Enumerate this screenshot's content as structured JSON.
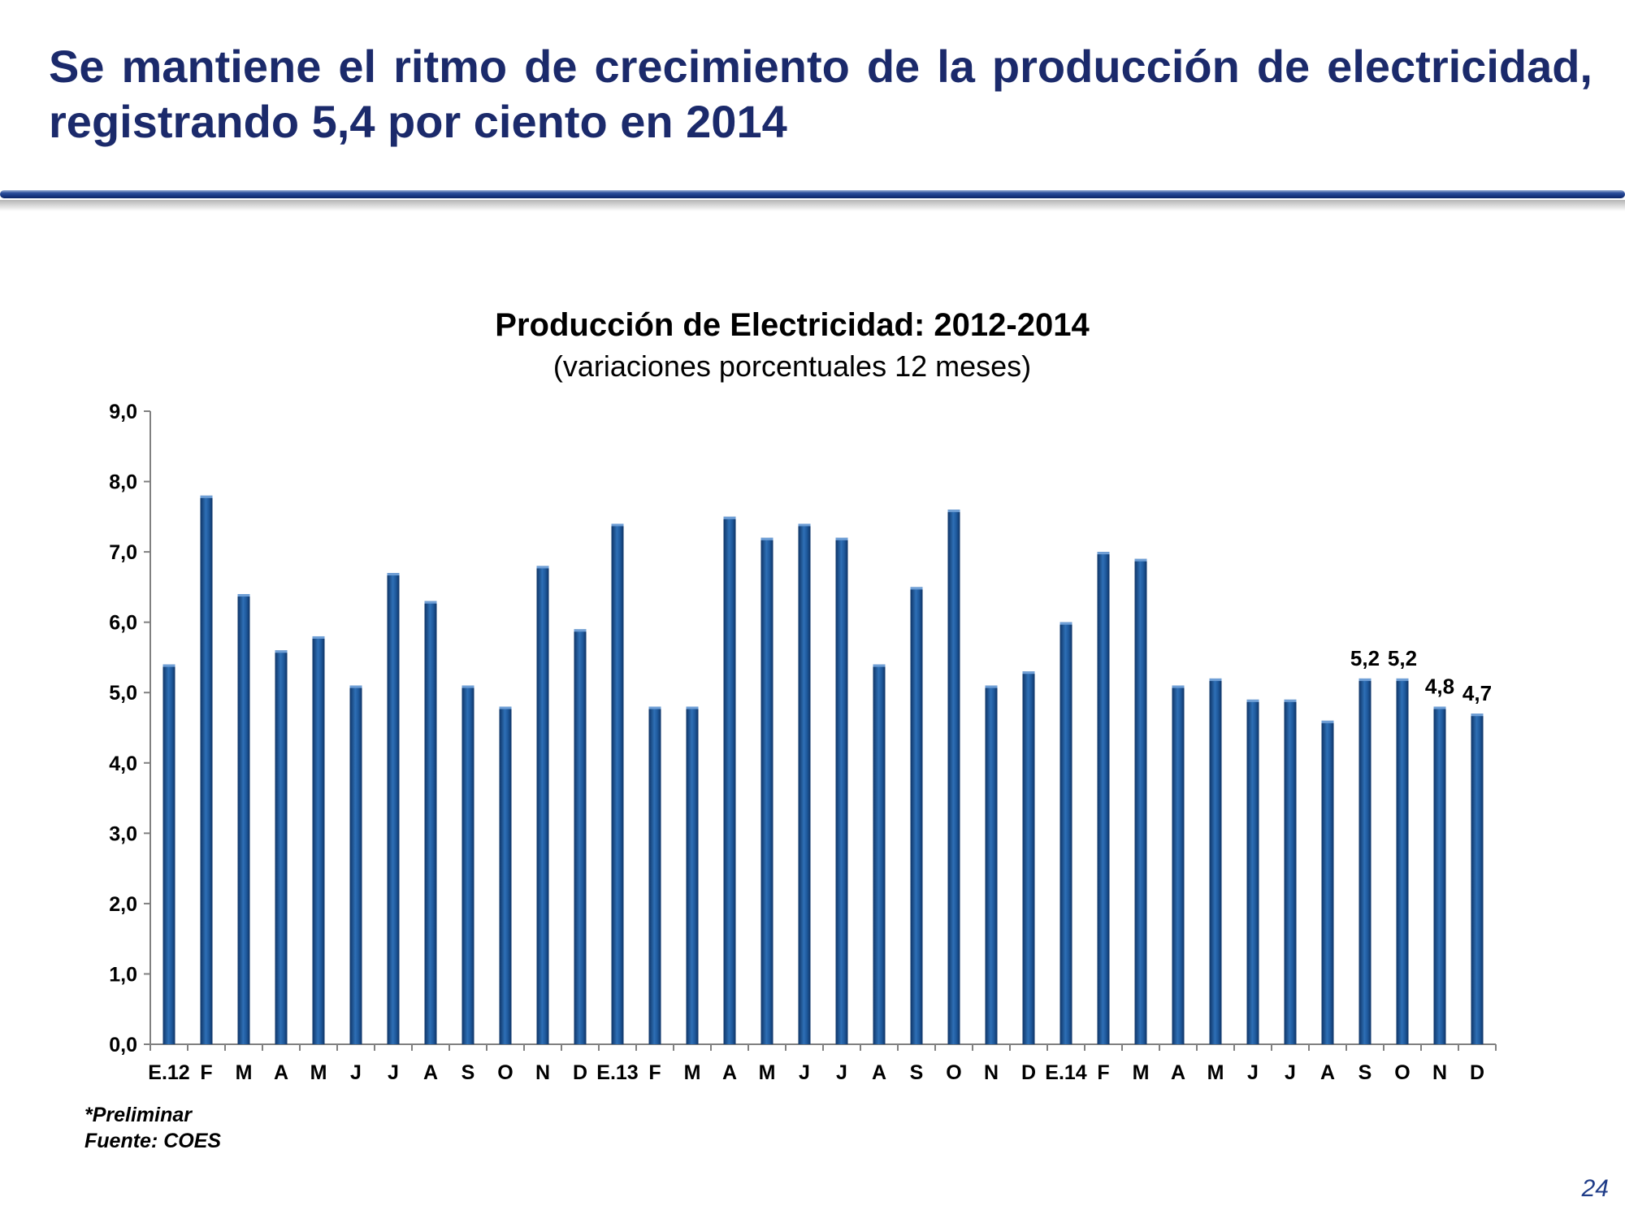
{
  "slide": {
    "title": "Se mantiene el ritmo de crecimiento de la producción de electricidad, registrando 5,4 por ciento en 2014",
    "page_number": "24"
  },
  "notes": {
    "preliminary": "*Preliminar",
    "source": "Fuente: COES"
  },
  "colors": {
    "title": "#1b2a6b",
    "bar": "#1f5a9e",
    "bar_dark": "#0e3466",
    "bar_light": "#4f88c6",
    "rule": "#1b3a86"
  },
  "chart_data": {
    "type": "bar",
    "title": "Producción de Electricidad: 2012-2014",
    "subtitle": "(variaciones porcentuales 12 meses)",
    "xlabel": "",
    "ylabel": "",
    "ylim": [
      0,
      9
    ],
    "yticks": [
      "0,0",
      "1,0",
      "2,0",
      "3,0",
      "4,0",
      "5,0",
      "6,0",
      "7,0",
      "8,0",
      "9,0"
    ],
    "grid": false,
    "legend": "none",
    "categories": [
      "E.12",
      "F",
      "M",
      "A",
      "M",
      "J",
      "J",
      "A",
      "S",
      "O",
      "N",
      "D",
      "E.13",
      "F",
      "M",
      "A",
      "M",
      "J",
      "J",
      "A",
      "S",
      "O",
      "N",
      "D",
      "E.14",
      "F",
      "M",
      "A",
      "M",
      "J",
      "J",
      "A",
      "S",
      "O",
      "N",
      "D"
    ],
    "values": [
      5.4,
      7.8,
      6.4,
      5.6,
      5.8,
      5.1,
      6.7,
      6.3,
      5.1,
      4.8,
      6.8,
      5.9,
      7.4,
      4.8,
      4.8,
      7.5,
      7.2,
      7.4,
      7.2,
      5.4,
      6.5,
      7.6,
      5.1,
      5.3,
      6.0,
      7.0,
      6.9,
      5.1,
      5.2,
      4.9,
      4.9,
      4.6,
      5.2,
      5.2,
      4.8,
      4.7
    ],
    "data_labels": [
      {
        "index": 32,
        "text": "5,2"
      },
      {
        "index": 33,
        "text": "5,2"
      },
      {
        "index": 34,
        "text": "4,8"
      },
      {
        "index": 35,
        "text": "4,7"
      }
    ]
  }
}
